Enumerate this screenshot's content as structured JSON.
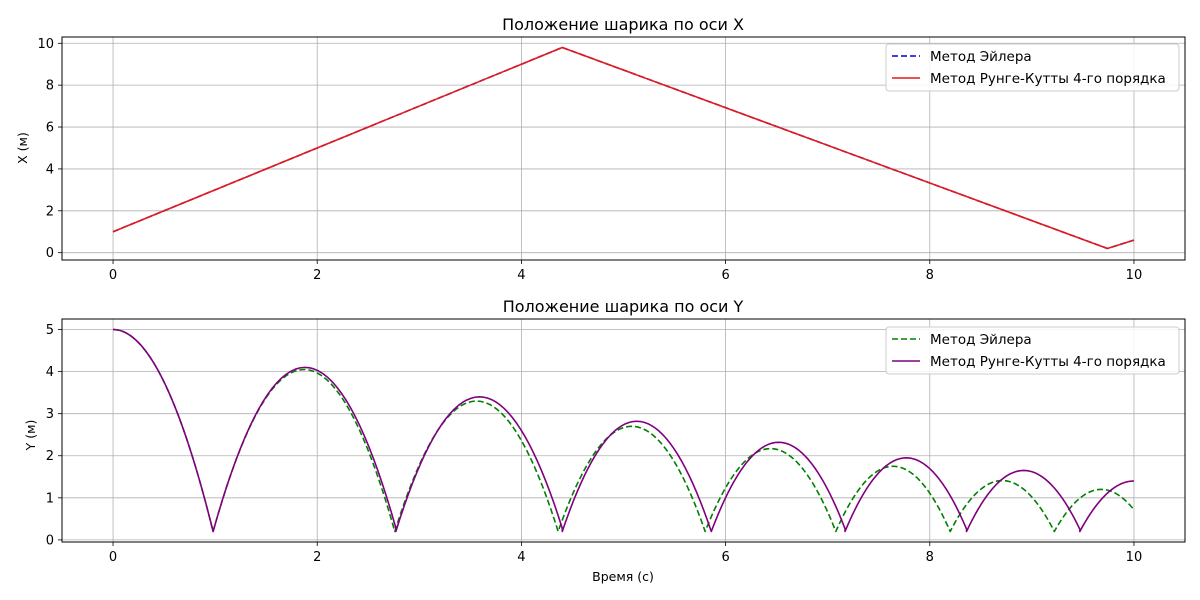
{
  "chart_data": [
    {
      "type": "line",
      "title": "Положение шарика по оси X",
      "xlabel": "",
      "ylabel": "X (м)",
      "xlim": [
        -0.5,
        10.5
      ],
      "ylim": [
        -0.35,
        10.3
      ],
      "xticks": [
        0,
        2,
        4,
        6,
        8,
        10
      ],
      "yticks": [
        0,
        2,
        4,
        6,
        8,
        10
      ],
      "grid": true,
      "legend_position": "upper-right",
      "series": [
        {
          "name": "Метод Эйлера",
          "color": "#0000cc",
          "style": "dashed",
          "x": [
            0,
            4.4,
            9.74,
            10
          ],
          "y": [
            1.0,
            9.8,
            0.2,
            0.6
          ]
        },
        {
          "name": "Метод Рунге-Кутты 4-го порядка",
          "color": "#e41a1c",
          "style": "solid",
          "x": [
            0,
            4.4,
            9.74,
            10
          ],
          "y": [
            1.0,
            9.8,
            0.2,
            0.6
          ]
        }
      ]
    },
    {
      "type": "line",
      "title": "Положение шарика по оси Y",
      "xlabel": "Время (с)",
      "ylabel": "Y (м)",
      "xlim": [
        -0.5,
        10.5
      ],
      "ylim": [
        -0.05,
        5.25
      ],
      "xticks": [
        0,
        2,
        4,
        6,
        8,
        10
      ],
      "yticks": [
        0,
        1,
        2,
        3,
        4,
        5
      ],
      "grid": true,
      "legend_position": "upper-right",
      "series": [
        {
          "name": "Метод Эйлера",
          "color": "#008000",
          "style": "dashed",
          "bounces": [
            {
              "t0": 0,
              "t1": 0.98,
              "tp": 0,
              "h": 5.0
            },
            {
              "t0": 0.98,
              "t1": 2.76,
              "tp": 1.87,
              "h": 4.05
            },
            {
              "t0": 2.76,
              "t1": 4.36,
              "tp": 3.56,
              "h": 3.3
            },
            {
              "t0": 4.36,
              "t1": 5.8,
              "tp": 5.08,
              "h": 2.7
            },
            {
              "t0": 5.8,
              "t1": 7.08,
              "tp": 6.44,
              "h": 2.17
            },
            {
              "t0": 7.08,
              "t1": 8.2,
              "tp": 7.64,
              "h": 1.75
            },
            {
              "t0": 8.2,
              "t1": 9.22,
              "tp": 8.71,
              "h": 1.41
            },
            {
              "t0": 9.22,
              "t1": 10.0,
              "tp": 9.68,
              "h": 1.2
            }
          ]
        },
        {
          "name": "Метод Рунге-Кутты 4-го порядка",
          "color": "#800080",
          "style": "solid",
          "bounces": [
            {
              "t0": 0,
              "t1": 0.98,
              "tp": 0,
              "h": 5.0
            },
            {
              "t0": 0.98,
              "t1": 2.77,
              "tp": 1.88,
              "h": 4.1
            },
            {
              "t0": 2.77,
              "t1": 4.4,
              "tp": 3.59,
              "h": 3.4
            },
            {
              "t0": 4.4,
              "t1": 5.86,
              "tp": 5.13,
              "h": 2.82
            },
            {
              "t0": 5.86,
              "t1": 7.17,
              "tp": 6.52,
              "h": 2.32
            },
            {
              "t0": 7.17,
              "t1": 8.36,
              "tp": 7.77,
              "h": 1.95
            },
            {
              "t0": 8.36,
              "t1": 9.47,
              "tp": 8.92,
              "h": 1.65
            },
            {
              "t0": 9.47,
              "t1": 10.0,
              "tp": 10.0,
              "h": 1.4
            }
          ]
        }
      ]
    }
  ]
}
